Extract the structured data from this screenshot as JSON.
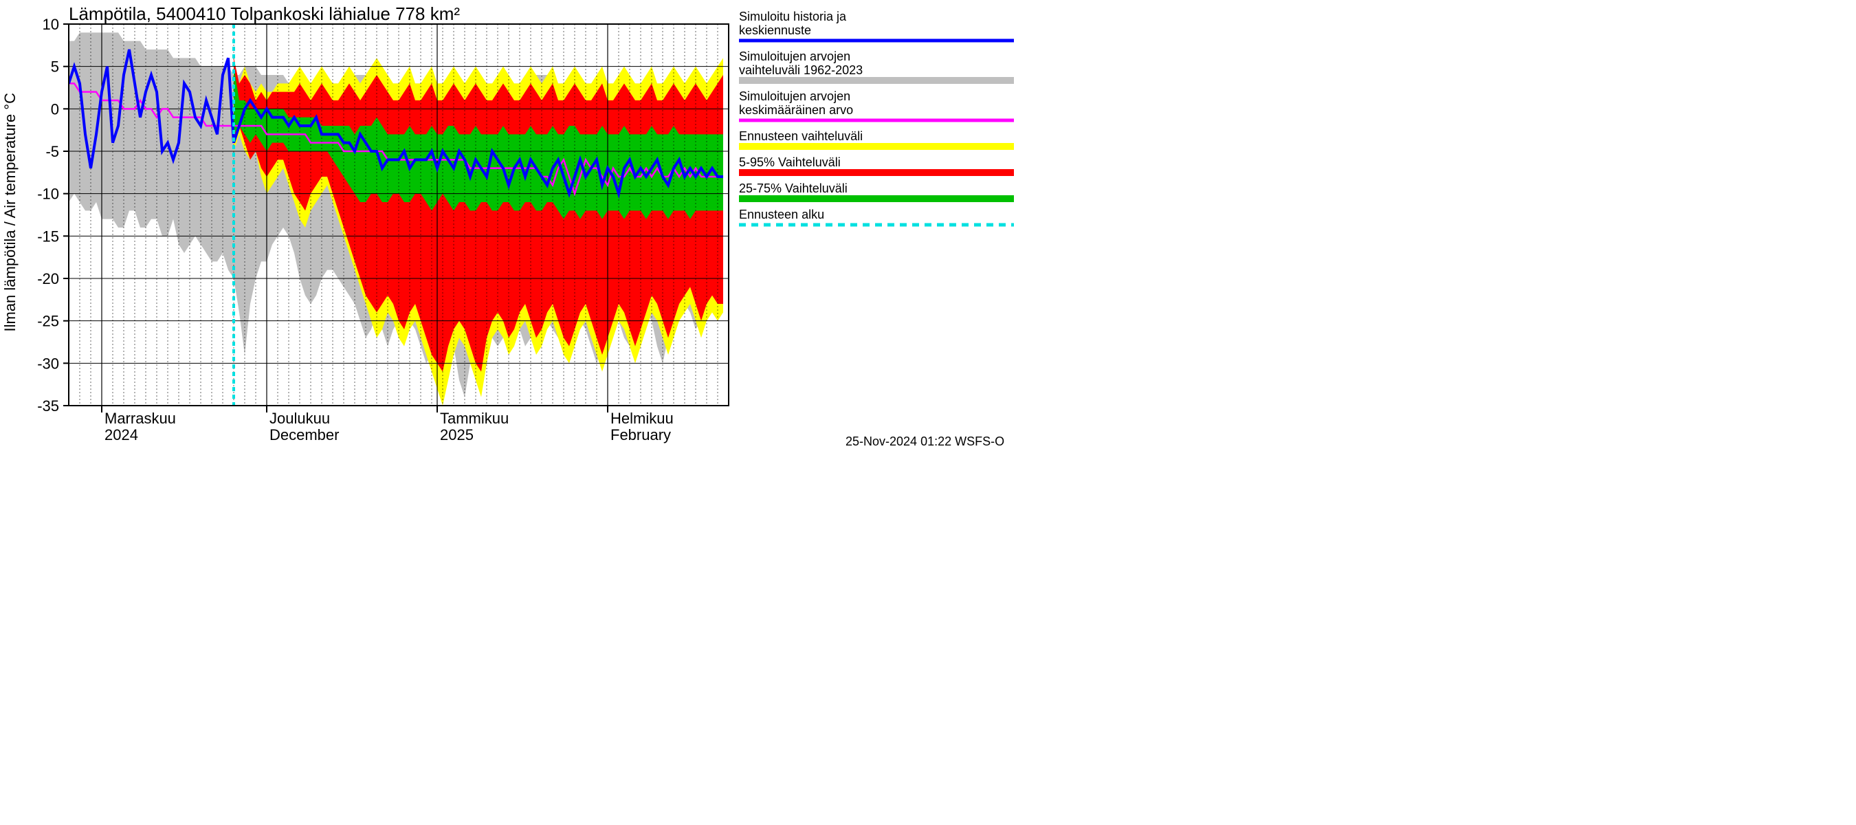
{
  "chart": {
    "type": "line-area-timeseries",
    "title": "Lämpötila, 5400410 Tolpankoski lähialue 778 km²",
    "ylabel": "Ilman lämpötila / Air temperature    °C",
    "ylim": [
      -35,
      10
    ],
    "ytick_step": 5,
    "yticks": [
      -35,
      -30,
      -25,
      -20,
      -15,
      -10,
      -5,
      0,
      5,
      10
    ],
    "x_days": 120,
    "x_major_ticks": [
      {
        "day": 6,
        "label_top": "Marraskuu",
        "label_bottom": "2024"
      },
      {
        "day": 36,
        "label_top": "Joulukuu",
        "label_bottom": "December"
      },
      {
        "day": 67,
        "label_top": "Tammikuu",
        "label_bottom": "2025"
      },
      {
        "day": 98,
        "label_top": "Helmikuu",
        "label_bottom": "February"
      }
    ],
    "forecast_start_day": 30,
    "colors": {
      "background": "#ffffff",
      "axis": "#000000",
      "grid_minor": "#000000",
      "grey_band": "#bfbfbf",
      "yellow_band": "#ffff00",
      "red_band": "#ff0000",
      "green_band": "#00c000",
      "blue_line": "#0000ff",
      "magenta_line": "#ff00ff",
      "cyan_dash": "#00e0e0"
    },
    "line_widths": {
      "blue": 4,
      "magenta": 2.5,
      "axis": 2,
      "grid": 1
    },
    "footer": "25-Nov-2024 01:22 WSFS-O",
    "legend": [
      {
        "label1": "Simuloitu historia ja",
        "label2": "keskiennuste",
        "swatch": "#0000ff",
        "kind": "line"
      },
      {
        "label1": "Simuloitujen arvojen",
        "label2": "vaihteluväli 1962-2023",
        "swatch": "#bfbfbf",
        "kind": "band"
      },
      {
        "label1": "Simuloitujen arvojen",
        "label2": "keskimääräinen arvo",
        "swatch": "#ff00ff",
        "kind": "line"
      },
      {
        "label1": "Ennusteen vaihteluväli",
        "label2": "",
        "swatch": "#ffff00",
        "kind": "band"
      },
      {
        "label1": "5-95% Vaihteluväli",
        "label2": "",
        "swatch": "#ff0000",
        "kind": "band"
      },
      {
        "label1": "25-75% Vaihteluväli",
        "label2": "",
        "swatch": "#00c000",
        "kind": "band"
      },
      {
        "label1": "Ennusteen alku",
        "label2": "",
        "swatch": "#00e0e0",
        "kind": "dash"
      }
    ],
    "grey_upper": [
      8,
      8,
      9,
      9,
      9,
      9,
      9,
      9,
      9,
      9,
      8,
      8,
      8,
      8,
      7,
      7,
      7,
      7,
      7,
      6,
      6,
      6,
      6,
      6,
      5,
      5,
      5,
      5,
      5,
      5,
      4,
      4,
      5,
      5,
      5,
      4,
      4,
      4,
      4,
      4,
      3,
      2,
      2,
      3,
      3,
      2,
      2,
      2,
      3,
      3,
      3,
      4,
      4,
      4,
      4,
      4,
      4,
      4,
      3,
      3,
      3,
      3,
      3,
      3,
      3,
      3,
      3,
      3,
      3,
      3,
      3,
      3,
      3,
      3,
      3,
      3,
      3,
      3,
      3,
      3,
      3,
      3,
      3,
      4,
      4,
      4,
      4,
      4,
      4,
      3,
      3,
      4,
      4,
      3,
      3,
      3,
      3,
      3,
      3,
      3,
      3,
      3,
      3,
      3,
      3,
      3,
      3,
      3,
      3,
      3,
      3,
      3,
      3,
      3,
      3,
      3,
      3,
      3,
      3,
      3
    ],
    "grey_lower": [
      -11,
      -10,
      -11,
      -12,
      -12,
      -11,
      -13,
      -13,
      -13,
      -14,
      -14,
      -12,
      -12,
      -14,
      -14,
      -13,
      -13,
      -15,
      -15,
      -13,
      -16,
      -17,
      -16,
      -15,
      -16,
      -17,
      -18,
      -18,
      -17,
      -19,
      -20,
      -24,
      -29,
      -23,
      -20,
      -18,
      -18,
      -16,
      -15,
      -14,
      -15,
      -17,
      -20,
      -22,
      -23,
      -22,
      -20,
      -19,
      -19,
      -20,
      -21,
      -22,
      -23,
      -25,
      -27,
      -26,
      -24,
      -26,
      -28,
      -26,
      -25,
      -25,
      -25,
      -26,
      -28,
      -30,
      -29,
      -27,
      -25,
      -26,
      -28,
      -32,
      -34,
      -30,
      -27,
      -25,
      -25,
      -27,
      -28,
      -27,
      -26,
      -25,
      -26,
      -28,
      -27,
      -26,
      -25,
      -25,
      -26,
      -27,
      -28,
      -27,
      -26,
      -25,
      -26,
      -28,
      -30,
      -28,
      -26,
      -25,
      -25,
      -27,
      -28,
      -26,
      -25,
      -24,
      -25,
      -28,
      -30,
      -27,
      -25,
      -24,
      -23,
      -24,
      -26,
      -25,
      -24,
      -24,
      -25,
      -24
    ],
    "yellow_upper": [
      null,
      null,
      null,
      null,
      null,
      null,
      null,
      null,
      null,
      null,
      null,
      null,
      null,
      null,
      null,
      null,
      null,
      null,
      null,
      null,
      null,
      null,
      null,
      null,
      null,
      null,
      null,
      null,
      null,
      null,
      6,
      3,
      5,
      3,
      2,
      3,
      2,
      2,
      3,
      3,
      3,
      4,
      5,
      4,
      3,
      4,
      5,
      4,
      3,
      3,
      4,
      5,
      4,
      3,
      4,
      5,
      6,
      5,
      4,
      3,
      3,
      4,
      5,
      3,
      3,
      4,
      5,
      3,
      3,
      4,
      5,
      4,
      3,
      4,
      5,
      4,
      3,
      3,
      4,
      5,
      4,
      3,
      3,
      4,
      5,
      4,
      3,
      4,
      5,
      3,
      3,
      4,
      5,
      4,
      3,
      3,
      4,
      5,
      3,
      3,
      4,
      5,
      4,
      3,
      3,
      4,
      5,
      3,
      3,
      4,
      5,
      4,
      3,
      4,
      5,
      4,
      3,
      4,
      5,
      6
    ],
    "yellow_lower": [
      null,
      null,
      null,
      null,
      null,
      null,
      null,
      null,
      null,
      null,
      null,
      null,
      null,
      null,
      null,
      null,
      null,
      null,
      null,
      null,
      null,
      null,
      null,
      null,
      null,
      null,
      null,
      null,
      null,
      null,
      -5,
      -3,
      -5,
      -6,
      -5,
      -8,
      -10,
      -9,
      -8,
      -7,
      -9,
      -11,
      -13,
      -14,
      -12,
      -11,
      -10,
      -9,
      -11,
      -13,
      -15,
      -17,
      -19,
      -21,
      -23,
      -25,
      -27,
      -26,
      -24,
      -25,
      -27,
      -28,
      -26,
      -25,
      -27,
      -29,
      -31,
      -33,
      -35,
      -32,
      -29,
      -27,
      -28,
      -30,
      -32,
      -34,
      -30,
      -27,
      -26,
      -27,
      -29,
      -28,
      -26,
      -25,
      -27,
      -29,
      -28,
      -26,
      -25,
      -27,
      -29,
      -30,
      -28,
      -26,
      -25,
      -27,
      -29,
      -31,
      -29,
      -27,
      -25,
      -26,
      -28,
      -30,
      -28,
      -26,
      -24,
      -25,
      -27,
      -29,
      -27,
      -25,
      -24,
      -23,
      -25,
      -27,
      -25,
      -24,
      -25,
      -24
    ],
    "red_upper": [
      null,
      null,
      null,
      null,
      null,
      null,
      null,
      null,
      null,
      null,
      null,
      null,
      null,
      null,
      null,
      null,
      null,
      null,
      null,
      null,
      null,
      null,
      null,
      null,
      null,
      null,
      null,
      null,
      null,
      null,
      6,
      3,
      4,
      3,
      1,
      2,
      1,
      2,
      2,
      2,
      2,
      2,
      3,
      2,
      1,
      2,
      3,
      2,
      1,
      1,
      2,
      3,
      2,
      1,
      2,
      3,
      4,
      3,
      2,
      1,
      1,
      2,
      3,
      1,
      1,
      2,
      3,
      1,
      1,
      2,
      3,
      2,
      1,
      2,
      3,
      2,
      1,
      1,
      2,
      3,
      2,
      1,
      1,
      2,
      3,
      2,
      1,
      2,
      3,
      1,
      1,
      2,
      3,
      2,
      1,
      1,
      2,
      3,
      1,
      1,
      2,
      3,
      2,
      1,
      1,
      2,
      3,
      1,
      1,
      2,
      3,
      2,
      1,
      2,
      3,
      2,
      1,
      2,
      3,
      4
    ],
    "red_lower": [
      null,
      null,
      null,
      null,
      null,
      null,
      null,
      null,
      null,
      null,
      null,
      null,
      null,
      null,
      null,
      null,
      null,
      null,
      null,
      null,
      null,
      null,
      null,
      null,
      null,
      null,
      null,
      null,
      null,
      null,
      -4,
      -2,
      -4,
      -6,
      -5,
      -7,
      -8,
      -7,
      -6,
      -6,
      -8,
      -10,
      -11,
      -12,
      -10,
      -9,
      -8,
      -8,
      -10,
      -12,
      -14,
      -16,
      -18,
      -20,
      -22,
      -23,
      -24,
      -23,
      -22,
      -23,
      -25,
      -26,
      -24,
      -23,
      -25,
      -27,
      -29,
      -30,
      -31,
      -28,
      -26,
      -25,
      -26,
      -28,
      -30,
      -31,
      -27,
      -25,
      -24,
      -25,
      -27,
      -26,
      -24,
      -23,
      -25,
      -27,
      -26,
      -24,
      -23,
      -25,
      -27,
      -28,
      -26,
      -24,
      -23,
      -25,
      -27,
      -29,
      -27,
      -25,
      -23,
      -24,
      -26,
      -28,
      -26,
      -24,
      -22,
      -23,
      -25,
      -27,
      -25,
      -23,
      -22,
      -21,
      -23,
      -25,
      -23,
      -22,
      -23,
      -23
    ],
    "green_upper": [
      null,
      null,
      null,
      null,
      null,
      null,
      null,
      null,
      null,
      null,
      null,
      null,
      null,
      null,
      null,
      null,
      null,
      null,
      null,
      null,
      null,
      null,
      null,
      null,
      null,
      null,
      null,
      null,
      null,
      null,
      5,
      1,
      1,
      0,
      0,
      0,
      0,
      0,
      0,
      0,
      -1,
      -1,
      -1,
      -1,
      -1,
      -1,
      -2,
      -2,
      -2,
      -2,
      -2,
      -2,
      -3,
      -2,
      -2,
      -2,
      -1,
      -2,
      -3,
      -3,
      -3,
      -3,
      -2,
      -3,
      -3,
      -3,
      -2,
      -3,
      -3,
      -2,
      -2,
      -3,
      -3,
      -3,
      -2,
      -3,
      -3,
      -3,
      -3,
      -2,
      -3,
      -3,
      -3,
      -3,
      -2,
      -3,
      -3,
      -3,
      -2,
      -3,
      -3,
      -2,
      -2,
      -3,
      -3,
      -3,
      -3,
      -2,
      -3,
      -3,
      -3,
      -2,
      -3,
      -3,
      -3,
      -3,
      -2,
      -3,
      -3,
      -3,
      -2,
      -3,
      -3,
      -3,
      -3,
      -3,
      -3,
      -3,
      -3,
      -3
    ],
    "green_lower": [
      null,
      null,
      null,
      null,
      null,
      null,
      null,
      null,
      null,
      null,
      null,
      null,
      null,
      null,
      null,
      null,
      null,
      null,
      null,
      null,
      null,
      null,
      null,
      null,
      null,
      null,
      null,
      null,
      null,
      null,
      -3,
      -2,
      -3,
      -4,
      -3,
      -4,
      -5,
      -4,
      -4,
      -4,
      -5,
      -5,
      -5,
      -5,
      -5,
      -5,
      -5,
      -5,
      -6,
      -7,
      -8,
      -9,
      -10,
      -11,
      -11,
      -10,
      -10,
      -11,
      -11,
      -10,
      -10,
      -11,
      -11,
      -10,
      -10,
      -11,
      -12,
      -11,
      -10,
      -11,
      -12,
      -11,
      -11,
      -12,
      -12,
      -11,
      -11,
      -12,
      -12,
      -11,
      -11,
      -12,
      -12,
      -11,
      -11,
      -12,
      -12,
      -11,
      -11,
      -12,
      -13,
      -12,
      -12,
      -13,
      -12,
      -12,
      -12,
      -13,
      -12,
      -12,
      -12,
      -13,
      -12,
      -12,
      -12,
      -13,
      -12,
      -12,
      -12,
      -13,
      -12,
      -12,
      -12,
      -13,
      -12,
      -12,
      -12,
      -12,
      -12,
      -12
    ],
    "blue_line": [
      3,
      5,
      3,
      -3,
      -7,
      -3,
      2,
      5,
      -4,
      -2,
      4,
      7,
      3,
      -1,
      2,
      4,
      2,
      -5,
      -4,
      -6,
      -4,
      3,
      2,
      -1,
      -2,
      1,
      -1,
      -3,
      4,
      6,
      -4,
      -2,
      0,
      1,
      0,
      -1,
      0,
      -1,
      -1,
      -1,
      -2,
      -1,
      -2,
      -2,
      -2,
      -1,
      -3,
      -3,
      -3,
      -3,
      -4,
      -4,
      -5,
      -3,
      -4,
      -5,
      -5,
      -7,
      -6,
      -6,
      -6,
      -5,
      -7,
      -6,
      -6,
      -6,
      -5,
      -7,
      -5,
      -6,
      -7,
      -5,
      -6,
      -8,
      -6,
      -7,
      -8,
      -5,
      -6,
      -7,
      -9,
      -7,
      -6,
      -8,
      -6,
      -7,
      -8,
      -9,
      -7,
      -6,
      -8,
      -10,
      -8,
      -6,
      -8,
      -7,
      -6,
      -9,
      -7,
      -8,
      -10,
      -7,
      -6,
      -8,
      -7,
      -8,
      -7,
      -6,
      -8,
      -9,
      -7,
      -6,
      -8,
      -7,
      -8,
      -7,
      -8,
      -7,
      -8,
      -8
    ],
    "magenta_line": [
      3,
      3,
      2,
      2,
      2,
      2,
      1,
      1,
      1,
      1,
      0,
      0,
      0,
      1,
      0,
      0,
      -1,
      0,
      0,
      -1,
      -1,
      -1,
      -1,
      -1,
      -1,
      -2,
      -2,
      -2,
      -2,
      -2,
      -2,
      -2,
      -2,
      -2,
      -2,
      -2,
      -3,
      -3,
      -3,
      -3,
      -3,
      -3,
      -3,
      -3,
      -4,
      -4,
      -4,
      -4,
      -4,
      -4,
      -5,
      -5,
      -5,
      -5,
      -5,
      -5,
      -5,
      -5,
      -6,
      -6,
      -6,
      -6,
      -6,
      -6,
      -6,
      -6,
      -6,
      -6,
      -6,
      -6,
      -6,
      -6,
      -6,
      -7,
      -7,
      -7,
      -7,
      -7,
      -7,
      -7,
      -7,
      -7,
      -7,
      -7,
      -7,
      -7,
      -8,
      -8,
      -9,
      -7,
      -6,
      -8,
      -10,
      -8,
      -6,
      -7,
      -7,
      -8,
      -9,
      -7,
      -8,
      -8,
      -7,
      -8,
      -8,
      -7,
      -8,
      -7,
      -8,
      -8,
      -7,
      -8,
      -7,
      -8,
      -7,
      -8,
      -8,
      -8,
      -8,
      -8
    ]
  }
}
